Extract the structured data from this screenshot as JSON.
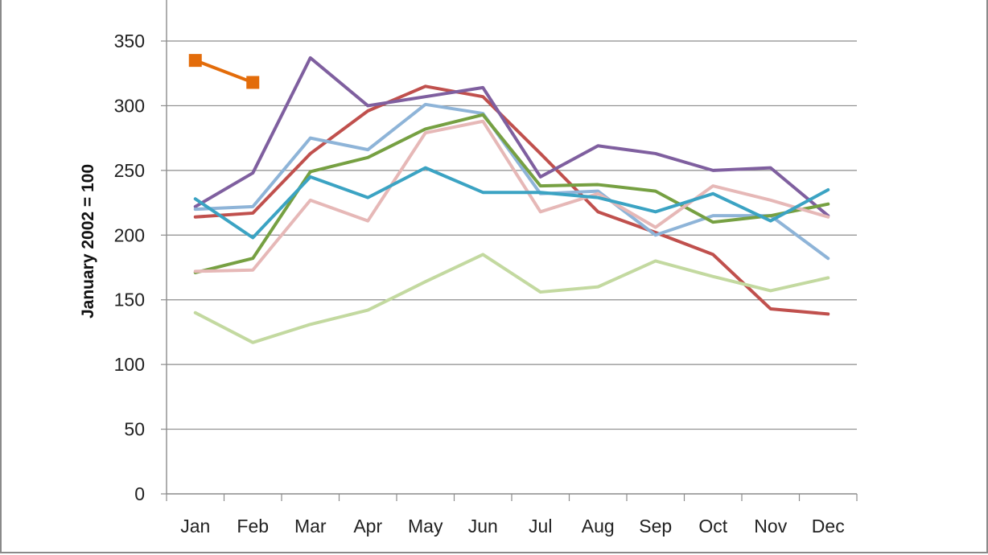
{
  "chart_data": {
    "type": "line",
    "title": "",
    "xlabel": "",
    "ylabel": "January  2002 = 100",
    "ylim": [
      0,
      350
    ],
    "yticks": [
      0,
      50,
      100,
      150,
      200,
      250,
      300,
      350
    ],
    "grid": true,
    "legend": "none",
    "categories": [
      "Jan",
      "Feb",
      "Mar",
      "Apr",
      "May",
      "Jun",
      "Jul",
      "Aug",
      "Sep",
      "Oct",
      "Nov",
      "Dec"
    ],
    "series": [
      {
        "color": "#e36c0a",
        "marker": "square",
        "values": [
          335,
          318,
          null,
          null,
          null,
          null,
          null,
          null,
          null,
          null,
          null,
          null
        ]
      },
      {
        "color": "#c0504d",
        "values": [
          214,
          217,
          263,
          296,
          315,
          307,
          263,
          218,
          202,
          185,
          143,
          139
        ]
      },
      {
        "color": "#7f5f9f",
        "values": [
          222,
          248,
          337,
          300,
          307,
          314,
          245,
          269,
          263,
          250,
          252,
          215
        ]
      },
      {
        "color": "#8eb4d8",
        "values": [
          220,
          222,
          275,
          266,
          301,
          294,
          232,
          234,
          200,
          215,
          215,
          182
        ]
      },
      {
        "color": "#76a042",
        "values": [
          171,
          182,
          249,
          260,
          282,
          293,
          238,
          239,
          234,
          210,
          215,
          224
        ]
      },
      {
        "color": "#e6b8b7",
        "values": [
          172,
          173,
          227,
          211,
          279,
          288,
          218,
          232,
          206,
          238,
          227,
          214
        ]
      },
      {
        "color": "#3ba3c3",
        "values": [
          228,
          198,
          245,
          229,
          252,
          233,
          233,
          229,
          218,
          232,
          211,
          235
        ]
      },
      {
        "color": "#c3d9a0",
        "values": [
          140,
          117,
          131,
          142,
          164,
          185,
          156,
          160,
          180,
          168,
          157,
          167
        ]
      }
    ]
  }
}
